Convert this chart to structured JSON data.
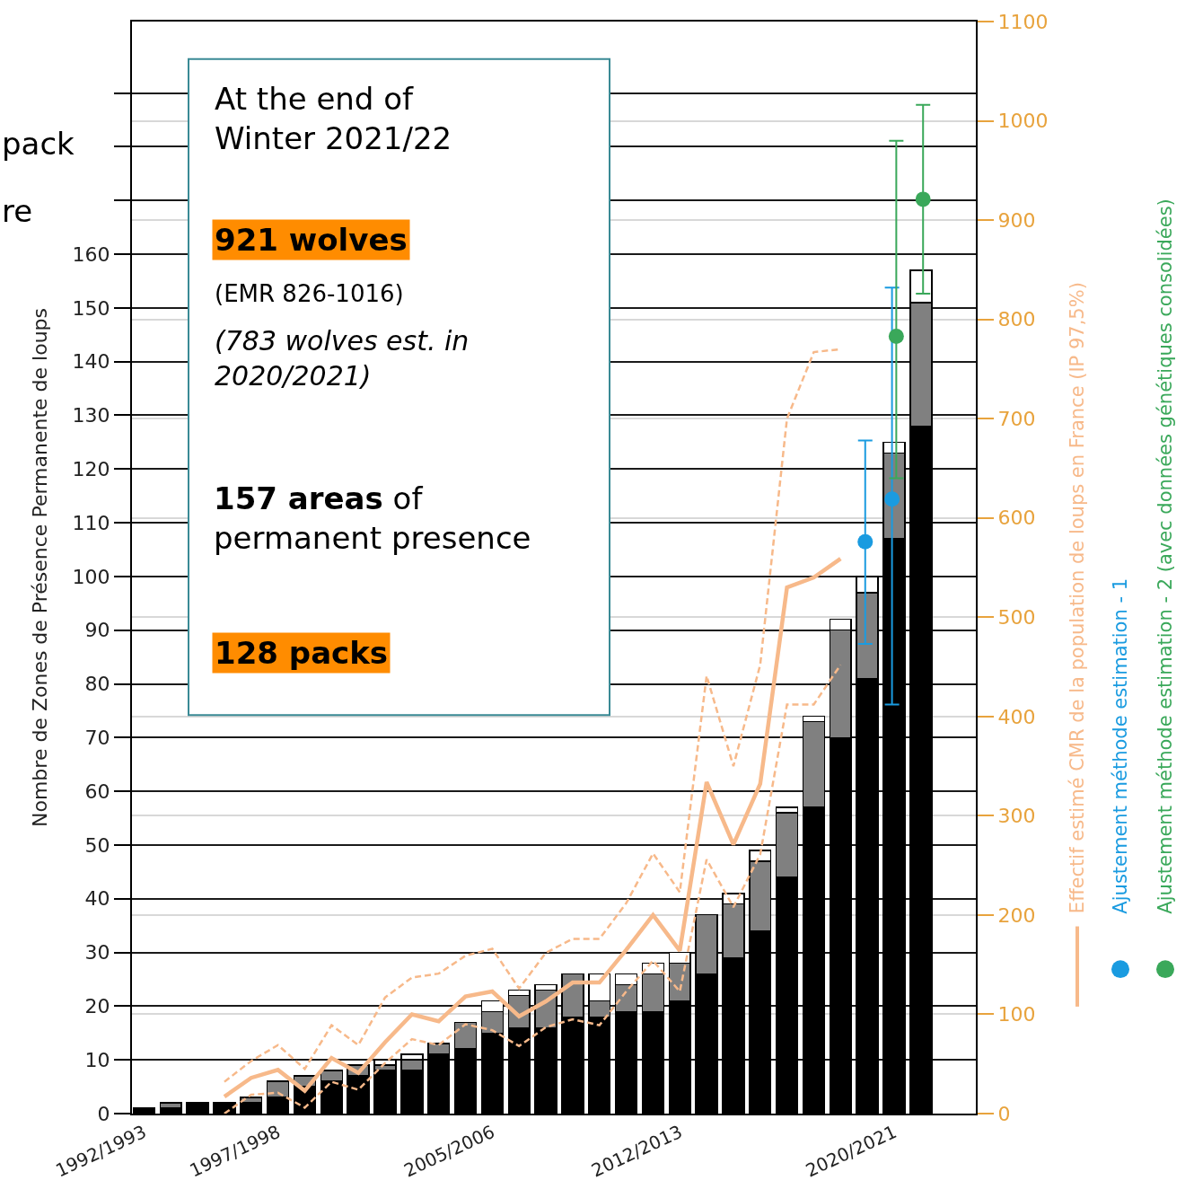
{
  "chart_data": {
    "type": "bar",
    "stacked": true,
    "ylabel": "Nombre de Zones de Présence Permanente de loups",
    "categories": [
      "1992/1993",
      null,
      null,
      null,
      null,
      "1997/1998",
      null,
      null,
      null,
      null,
      null,
      null,
      null,
      "2005/2006",
      null,
      null,
      null,
      null,
      null,
      null,
      "2012/2013",
      null,
      null,
      null,
      null,
      null,
      null,
      null,
      "2020/2021",
      null
    ],
    "series": [
      {
        "color": "#000000",
        "values": [
          1,
          1,
          2,
          2,
          2,
          3,
          5,
          6,
          7,
          8,
          8,
          11,
          12,
          15,
          16,
          16,
          18,
          18,
          19,
          19,
          21,
          26,
          29,
          34,
          44,
          57,
          70,
          81,
          107,
          128
        ]
      },
      {
        "color": "#808080",
        "values": [
          0,
          1,
          0,
          0,
          1,
          3,
          2,
          2,
          2,
          1,
          2,
          2,
          5,
          4,
          6,
          7,
          8,
          3,
          5,
          7,
          7,
          11,
          10,
          13,
          12,
          16,
          20,
          16,
          16,
          23
        ]
      },
      {
        "color": "#ffffff",
        "values": [
          0,
          0,
          0,
          0,
          0,
          0,
          0,
          0,
          0,
          1,
          1,
          0,
          0,
          2,
          1,
          1,
          0,
          5,
          2,
          2,
          2,
          0,
          2,
          2,
          1,
          1,
          2,
          3,
          2,
          6
        ]
      },
      {
        "type": "line",
        "axis": "y2",
        "line_style": "solid",
        "name": "Effectif estimé CMR de la population de loups en France (IP 97,5%)",
        "color": "#f7b98a",
        "values": [
          null,
          null,
          null,
          17,
          36,
          44,
          23,
          56,
          41,
          72,
          100,
          93,
          118,
          123,
          98,
          113,
          132,
          132,
          165,
          200,
          164,
          334,
          271,
          332,
          530,
          540,
          559,
          null,
          null,
          null
        ]
      },
      {
        "type": "line",
        "axis": "y2",
        "line_style": "dashed",
        "color": "#f7b98a",
        "values": [
          null,
          null,
          null,
          0,
          19,
          21,
          6,
          32,
          24,
          51,
          75,
          69,
          90,
          84,
          68,
          87,
          95,
          89,
          123,
          154,
          123,
          256,
          208,
          261,
          412,
          412,
          452,
          null,
          null,
          null
        ]
      },
      {
        "type": "line",
        "axis": "y2",
        "line_style": "dashed",
        "color": "#f7b98a",
        "values": [
          null,
          null,
          null,
          32,
          53,
          69,
          45,
          89,
          69,
          117,
          137,
          141,
          159,
          166,
          126,
          162,
          176,
          176,
          212,
          262,
          223,
          441,
          350,
          452,
          700,
          767,
          770,
          null,
          null,
          null
        ]
      },
      {
        "type": "scatter",
        "axis": "y2",
        "marker": "circle",
        "name": "Ajustement méthode estimation - 1",
        "color": "#1a9be0",
        "values": [
          null,
          null,
          null,
          null,
          null,
          null,
          null,
          null,
          null,
          null,
          null,
          null,
          null,
          null,
          null,
          null,
          null,
          null,
          null,
          null,
          null,
          null,
          null,
          null,
          null,
          null,
          null,
          576,
          619,
          null
        ],
        "errors": [
          null,
          null,
          null,
          null,
          null,
          null,
          null,
          null,
          null,
          null,
          null,
          null,
          null,
          null,
          null,
          null,
          null,
          null,
          null,
          null,
          null,
          null,
          null,
          null,
          null,
          null,
          null,
          [
            473,
            678
          ],
          [
            412,
            832
          ],
          null
        ]
      },
      {
        "type": "scatter",
        "axis": "y2",
        "marker": "circle",
        "name": "Ajustement méthode estimation - 2 (avec données génétiques consolidées)",
        "color": "#3aa85a",
        "values": [
          null,
          null,
          null,
          null,
          null,
          null,
          null,
          null,
          null,
          null,
          null,
          null,
          null,
          null,
          null,
          null,
          null,
          null,
          null,
          null,
          null,
          null,
          null,
          null,
          null,
          null,
          null,
          null,
          783,
          921
        ],
        "errors": [
          null,
          null,
          null,
          null,
          null,
          null,
          null,
          null,
          null,
          null,
          null,
          null,
          null,
          null,
          null,
          null,
          null,
          null,
          null,
          null,
          null,
          null,
          null,
          null,
          null,
          null,
          null,
          null,
          [
            640,
            980
          ],
          [
            826,
            1016
          ]
        ]
      }
    ],
    "ylim": [
      0,
      203.3
    ],
    "yticks": [
      0,
      10,
      20,
      30,
      40,
      50,
      60,
      70,
      80,
      90,
      100,
      110,
      120,
      130,
      140,
      150,
      160,
      {
        "value": 170,
        "label": null
      },
      {
        "value": 180,
        "label": null
      },
      {
        "value": 190,
        "label": null
      }
    ],
    "y2lim": [
      0,
      1100
    ],
    "y2ticks": [
      0,
      100,
      200,
      300,
      400,
      500,
      600,
      700,
      800,
      900,
      1000,
      1100
    ],
    "grid": true,
    "legend": "right",
    "annotations": [
      "pack",
      "re",
      "At the end of\nWinter 2021/22",
      "921 wolves",
      "(EMR 826-1016)",
      "(783 wolves est. in\n2020/2021)",
      "157 areas",
      "of\npermanent presence",
      "128 packs"
    ]
  }
}
